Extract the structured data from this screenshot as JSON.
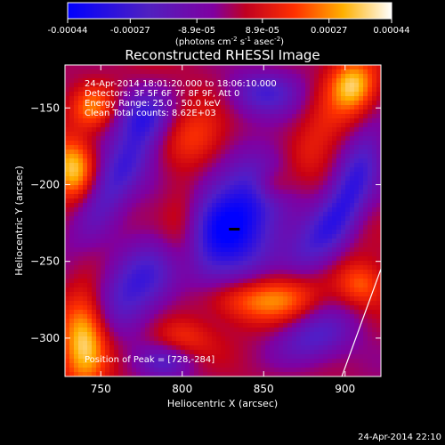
{
  "chart_data": {
    "type": "heatmap",
    "title": "Reconstructed RHESSI Image",
    "xlabel": "Heliocentric X (arcsec)",
    "ylabel": "Heliocentric Y (arcsec)",
    "xlim": [
      728,
      922
    ],
    "ylim": [
      -325,
      -122
    ],
    "x_ticks": [
      750,
      800,
      850,
      900
    ],
    "y_ticks": [
      -150,
      -200,
      -250,
      -300
    ],
    "colorbar": {
      "min": -0.00044,
      "max": 0.00044,
      "tick_values": [
        -0.00044,
        -0.00027,
        -8.9e-05,
        8.9e-05,
        0.00027,
        0.00044
      ],
      "tick_labels": [
        "-0.00044",
        "-0.00027",
        "-8.9e-05",
        "8.9e-05",
        "0.00027",
        "0.00044"
      ],
      "unit_label": "(photons cm",
      "unit_exp1": "-2",
      "unit_mid": " s",
      "unit_exp2": "-1",
      "unit_mid2": " asec",
      "unit_exp3": "-2",
      "unit_end": ")"
    },
    "annotations": [
      "24-Apr-2014 18:01:20.000 to 18:06:10.000",
      "Detectors: 3F 5F 6F 7F 8F 9F, Att 0",
      "Energy Range: 25.0 - 50.0 keV",
      "Clean    Total counts: 8.62E+03"
    ],
    "peak_label": "Position of Peak = [728,-284]",
    "peak": [
      728,
      -284
    ],
    "marker": [
      832,
      -229
    ],
    "grid": false,
    "blobs": [
      {
        "x": 832,
        "y": -225,
        "sx": 22,
        "sy": 38,
        "rot": -35,
        "a": -1.1
      },
      {
        "x": 760,
        "y": -195,
        "sx": 10,
        "sy": 30,
        "rot": -30,
        "a": -0.75
      },
      {
        "x": 775,
        "y": -155,
        "sx": 12,
        "sy": 12,
        "rot": 0,
        "a": -0.6
      },
      {
        "x": 905,
        "y": -200,
        "sx": 9,
        "sy": 30,
        "rot": -20,
        "a": -0.7
      },
      {
        "x": 770,
        "y": -265,
        "sx": 14,
        "sy": 22,
        "rot": -30,
        "a": -0.65
      },
      {
        "x": 880,
        "y": -300,
        "sx": 18,
        "sy": 12,
        "rot": 20,
        "a": -0.6
      },
      {
        "x": 850,
        "y": -140,
        "sx": 16,
        "sy": 10,
        "rot": 0,
        "a": -0.55
      },
      {
        "x": 790,
        "y": -315,
        "sx": 12,
        "sy": 8,
        "rot": 0,
        "a": -0.5
      },
      {
        "x": 880,
        "y": -240,
        "sx": 10,
        "sy": 25,
        "rot": -30,
        "a": -0.5
      },
      {
        "x": 740,
        "y": -300,
        "sx": 10,
        "sy": 22,
        "rot": 0,
        "a": 0.95
      },
      {
        "x": 733,
        "y": -190,
        "sx": 9,
        "sy": 14,
        "rot": 0,
        "a": 0.85
      },
      {
        "x": 745,
        "y": -150,
        "sx": 10,
        "sy": 10,
        "rot": 0,
        "a": 0.65
      },
      {
        "x": 810,
        "y": -170,
        "sx": 14,
        "sy": 14,
        "rot": 0,
        "a": 0.45
      },
      {
        "x": 880,
        "y": -175,
        "sx": 12,
        "sy": 28,
        "rot": -30,
        "a": 0.55
      },
      {
        "x": 840,
        "y": -275,
        "sx": 22,
        "sy": 10,
        "rot": 0,
        "a": 0.6
      },
      {
        "x": 865,
        "y": -270,
        "sx": 14,
        "sy": 14,
        "rot": 0,
        "a": 0.55
      },
      {
        "x": 800,
        "y": -230,
        "sx": 10,
        "sy": 25,
        "rot": 0,
        "a": 0.55
      },
      {
        "x": 905,
        "y": -135,
        "sx": 10,
        "sy": 12,
        "rot": 0,
        "a": 0.75
      },
      {
        "x": 855,
        "y": -200,
        "sx": 8,
        "sy": 8,
        "rot": 0,
        "a": 0.4
      },
      {
        "x": 910,
        "y": -265,
        "sx": 10,
        "sy": 10,
        "rot": 0,
        "a": 0.5
      },
      {
        "x": 800,
        "y": -300,
        "sx": 14,
        "sy": 10,
        "rot": 0,
        "a": 0.45
      }
    ]
  },
  "footer": {
    "timestamp": "24-Apr-2014 22:10"
  }
}
